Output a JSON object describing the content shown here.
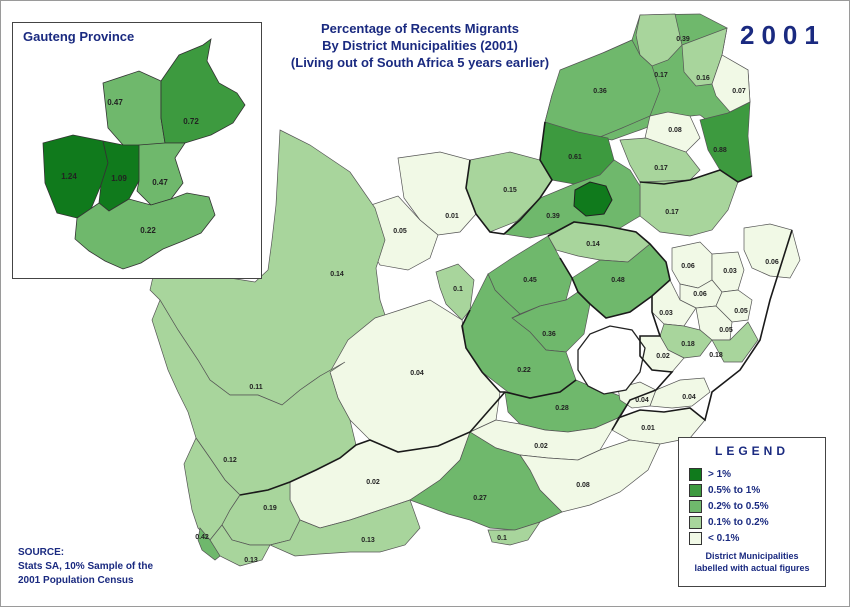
{
  "title": {
    "line1": "Percentage of Recents Migrants",
    "line2": "By District Municipalities (2001)",
    "line3": "(Living out of South Africa 5 years earlier)"
  },
  "year": "2001",
  "inset": {
    "title": "Gauteng Province",
    "districts": [
      {
        "value": "0.47",
        "category": 2
      },
      {
        "value": "0.72",
        "category": 1
      },
      {
        "value": "1.24",
        "category": 0
      },
      {
        "value": "1.09",
        "category": 0
      },
      {
        "value": "0.47",
        "category": 2
      },
      {
        "value": "0.22",
        "category": 2
      }
    ]
  },
  "legend": {
    "title": "LEGEND",
    "items": [
      {
        "label": "> 1%",
        "color": "#107a1c"
      },
      {
        "label": "0.5% to 1%",
        "color": "#3d9a3f"
      },
      {
        "label": "0.2% to 0.5%",
        "color": "#6fb86c"
      },
      {
        "label": "0.1% to 0.2%",
        "color": "#a8d59c"
      },
      {
        "label": "< 0.1%",
        "color": "#f1f9e6"
      }
    ],
    "note_line1": "District Municipalities",
    "note_line2": "labelled with actual figures"
  },
  "source": {
    "line1": "SOURCE:",
    "line2": "Stats SA, 10% Sample of the",
    "line3": "2001 Population Census"
  },
  "districts": [
    {
      "value": "0.39",
      "category": 2
    },
    {
      "value": "0.17",
      "category": 3
    },
    {
      "value": "0.16",
      "category": 3
    },
    {
      "value": "0.36",
      "category": 2
    },
    {
      "value": "0.07",
      "category": 4
    },
    {
      "value": "0.08",
      "category": 4
    },
    {
      "value": "0.61",
      "category": 1
    },
    {
      "value": "0.88",
      "category": 1
    },
    {
      "value": "0.17",
      "category": 3
    },
    {
      "value": "0.15",
      "category": 3
    },
    {
      "value": "0.17",
      "category": 3
    },
    {
      "value": "0.01",
      "category": 4
    },
    {
      "value": "0.05",
      "category": 4
    },
    {
      "value": "0.39",
      "category": 2
    },
    {
      "value": "0.14",
      "category": 3
    },
    {
      "value": "0.14",
      "category": 3
    },
    {
      "value": "0.1",
      "category": 3
    },
    {
      "value": "0.45",
      "category": 2
    },
    {
      "value": "0.48",
      "category": 2
    },
    {
      "value": "0.36",
      "category": 2
    },
    {
      "value": "0.22",
      "category": 2
    },
    {
      "value": "0.04",
      "category": 4
    },
    {
      "value": "0.11",
      "category": 3
    },
    {
      "value": "0.28",
      "category": 2
    },
    {
      "value": "0.06",
      "category": 4
    },
    {
      "value": "0.03",
      "category": 4
    },
    {
      "value": "0.06",
      "category": 4
    },
    {
      "value": "0.06",
      "category": 4
    },
    {
      "value": "0.05",
      "category": 4
    },
    {
      "value": "0.03",
      "category": 4
    },
    {
      "value": "0.05",
      "category": 4
    },
    {
      "value": "0.18",
      "category": 3
    },
    {
      "value": "0.18",
      "category": 3
    },
    {
      "value": "0.02",
      "category": 4
    },
    {
      "value": "0.04",
      "category": 4
    },
    {
      "value": "0.04",
      "category": 4
    },
    {
      "value": "0.01",
      "category": 4
    },
    {
      "value": "0.02",
      "category": 4
    },
    {
      "value": "0.08",
      "category": 4
    },
    {
      "value": "0.02",
      "category": 4
    },
    {
      "value": "0.27",
      "category": 2
    },
    {
      "value": "0.12",
      "category": 3
    },
    {
      "value": "0.19",
      "category": 3
    },
    {
      "value": "0.13",
      "category": 3
    },
    {
      "value": "0.42",
      "category": 2
    },
    {
      "value": "0.13",
      "category": 3
    },
    {
      "value": "0.1",
      "category": 3
    }
  ]
}
